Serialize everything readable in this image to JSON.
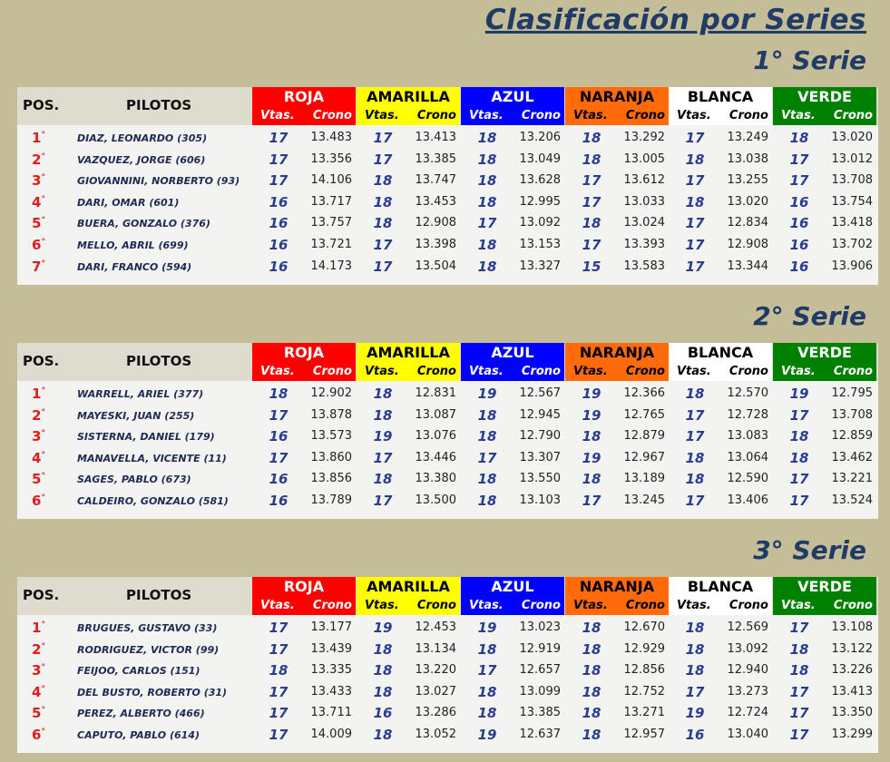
{
  "title": "Clasificación por Series",
  "colors": {
    "background": "#c5bd97",
    "title": "#1f3b66",
    "lanes": {
      "ROJA": {
        "bg": "#ff0000",
        "fg": "#ffffff"
      },
      "AMARILLA": {
        "bg": "#ffff00",
        "fg": "#000000"
      },
      "AZUL": {
        "bg": "#0000ff",
        "fg": "#ffffff"
      },
      "NARANJA": {
        "bg": "#ff6a0a",
        "fg": "#000000"
      },
      "BLANCA": {
        "bg": "#ffffff",
        "fg": "#000000"
      },
      "VERDE": {
        "bg": "#008000",
        "fg": "#ffffff"
      }
    }
  },
  "header": {
    "pos": "POS.",
    "pilotos": "PILOTOS",
    "lanes": [
      "ROJA",
      "AMARILLA",
      "AZUL",
      "NARANJA",
      "BLANCA",
      "VERDE"
    ],
    "vtas": "Vtas.",
    "crono": "Crono"
  },
  "series": [
    {
      "title": "1° Serie",
      "rows": [
        {
          "pos": "1",
          "name": "DIAZ, LEONARDO (305)",
          "r": [
            [
              "17",
              "13.483"
            ],
            [
              "17",
              "13.413"
            ],
            [
              "18",
              "13.206"
            ],
            [
              "18",
              "13.292"
            ],
            [
              "17",
              "13.249"
            ],
            [
              "18",
              "13.020"
            ]
          ]
        },
        {
          "pos": "2",
          "name": "VAZQUEZ, JORGE (606)",
          "r": [
            [
              "17",
              "13.356"
            ],
            [
              "17",
              "13.385"
            ],
            [
              "18",
              "13.049"
            ],
            [
              "18",
              "13.005"
            ],
            [
              "18",
              "13.038"
            ],
            [
              "17",
              "13.012"
            ]
          ]
        },
        {
          "pos": "3",
          "name": "GIOVANNINI, NORBERTO (93)",
          "r": [
            [
              "17",
              "14.106"
            ],
            [
              "18",
              "13.747"
            ],
            [
              "18",
              "13.628"
            ],
            [
              "17",
              "13.612"
            ],
            [
              "17",
              "13.255"
            ],
            [
              "17",
              "13.708"
            ]
          ]
        },
        {
          "pos": "4",
          "name": "DARI, OMAR (601)",
          "r": [
            [
              "16",
              "13.717"
            ],
            [
              "18",
              "13.453"
            ],
            [
              "18",
              "12.995"
            ],
            [
              "17",
              "13.033"
            ],
            [
              "18",
              "13.020"
            ],
            [
              "16",
              "13.754"
            ]
          ]
        },
        {
          "pos": "5",
          "name": "BUERA, GONZALO (376)",
          "r": [
            [
              "16",
              "13.757"
            ],
            [
              "18",
              "12.908"
            ],
            [
              "17",
              "13.092"
            ],
            [
              "18",
              "13.024"
            ],
            [
              "17",
              "12.834"
            ],
            [
              "16",
              "13.418"
            ]
          ]
        },
        {
          "pos": "6",
          "name": "MELLO, ABRIL (699)",
          "r": [
            [
              "16",
              "13.721"
            ],
            [
              "17",
              "13.398"
            ],
            [
              "18",
              "13.153"
            ],
            [
              "17",
              "13.393"
            ],
            [
              "17",
              "12.908"
            ],
            [
              "16",
              "13.702"
            ]
          ]
        },
        {
          "pos": "7",
          "name": "DARI, FRANCO (594)",
          "r": [
            [
              "16",
              "14.173"
            ],
            [
              "17",
              "13.504"
            ],
            [
              "18",
              "13.327"
            ],
            [
              "15",
              "13.583"
            ],
            [
              "17",
              "13.344"
            ],
            [
              "16",
              "13.906"
            ]
          ]
        }
      ]
    },
    {
      "title": "2° Serie",
      "rows": [
        {
          "pos": "1",
          "name": "WARRELL, ARIEL (377)",
          "r": [
            [
              "18",
              "12.902"
            ],
            [
              "18",
              "12.831"
            ],
            [
              "19",
              "12.567"
            ],
            [
              "19",
              "12.366"
            ],
            [
              "18",
              "12.570"
            ],
            [
              "19",
              "12.795"
            ]
          ]
        },
        {
          "pos": "2",
          "name": "MAYESKI, JUAN (255)",
          "r": [
            [
              "17",
              "13.878"
            ],
            [
              "18",
              "13.087"
            ],
            [
              "18",
              "12.945"
            ],
            [
              "19",
              "12.765"
            ],
            [
              "17",
              "12.728"
            ],
            [
              "17",
              "13.708"
            ]
          ]
        },
        {
          "pos": "3",
          "name": "SISTERNA, DANIEL (179)",
          "r": [
            [
              "16",
              "13.573"
            ],
            [
              "19",
              "13.076"
            ],
            [
              "18",
              "12.790"
            ],
            [
              "18",
              "12.879"
            ],
            [
              "17",
              "13.083"
            ],
            [
              "18",
              "12.859"
            ]
          ]
        },
        {
          "pos": "4",
          "name": "MANAVELLA, VICENTE (11)",
          "r": [
            [
              "17",
              "13.860"
            ],
            [
              "17",
              "13.446"
            ],
            [
              "17",
              "13.307"
            ],
            [
              "19",
              "12.967"
            ],
            [
              "18",
              "13.064"
            ],
            [
              "18",
              "13.462"
            ]
          ]
        },
        {
          "pos": "5",
          "name": "SAGES, PABLO (673)",
          "r": [
            [
              "16",
              "13.856"
            ],
            [
              "18",
              "13.380"
            ],
            [
              "18",
              "13.550"
            ],
            [
              "18",
              "13.189"
            ],
            [
              "18",
              "12.590"
            ],
            [
              "17",
              "13.221"
            ]
          ]
        },
        {
          "pos": "6",
          "name": "CALDEIRO, GONZALO  (581)",
          "r": [
            [
              "16",
              "13.789"
            ],
            [
              "17",
              "13.500"
            ],
            [
              "18",
              "13.103"
            ],
            [
              "17",
              "13.245"
            ],
            [
              "17",
              "13.406"
            ],
            [
              "17",
              "13.524"
            ]
          ]
        }
      ]
    },
    {
      "title": "3° Serie",
      "rows": [
        {
          "pos": "1",
          "name": "BRUGUES, GUSTAVO (33)",
          "r": [
            [
              "17",
              "13.177"
            ],
            [
              "19",
              "12.453"
            ],
            [
              "19",
              "13.023"
            ],
            [
              "18",
              "12.670"
            ],
            [
              "18",
              "12.569"
            ],
            [
              "17",
              "13.108"
            ]
          ]
        },
        {
          "pos": "2",
          "name": "RODRIGUEZ, VICTOR (99)",
          "r": [
            [
              "17",
              "13.439"
            ],
            [
              "18",
              "13.134"
            ],
            [
              "18",
              "12.919"
            ],
            [
              "18",
              "12.929"
            ],
            [
              "18",
              "13.092"
            ],
            [
              "18",
              "13.122"
            ]
          ]
        },
        {
          "pos": "3",
          "name": "FEIJOO, CARLOS (151)",
          "r": [
            [
              "18",
              "13.335"
            ],
            [
              "18",
              "13.220"
            ],
            [
              "17",
              "12.657"
            ],
            [
              "18",
              "12.856"
            ],
            [
              "18",
              "12.940"
            ],
            [
              "18",
              "13.226"
            ]
          ]
        },
        {
          "pos": "4",
          "name": "DEL BUSTO, ROBERTO (31)",
          "r": [
            [
              "17",
              "13.433"
            ],
            [
              "18",
              "13.027"
            ],
            [
              "18",
              "13.099"
            ],
            [
              "18",
              "12.752"
            ],
            [
              "17",
              "13.273"
            ],
            [
              "17",
              "13.413"
            ]
          ]
        },
        {
          "pos": "5",
          "name": "PEREZ, ALBERTO (466)",
          "r": [
            [
              "17",
              "13.711"
            ],
            [
              "16",
              "13.286"
            ],
            [
              "18",
              "13.385"
            ],
            [
              "18",
              "13.271"
            ],
            [
              "19",
              "12.724"
            ],
            [
              "17",
              "13.350"
            ]
          ]
        },
        {
          "pos": "6",
          "name": "CAPUTO, PABLO  (614)",
          "r": [
            [
              "17",
              "14.009"
            ],
            [
              "18",
              "13.052"
            ],
            [
              "19",
              "12.637"
            ],
            [
              "18",
              "12.957"
            ],
            [
              "16",
              "13.040"
            ],
            [
              "17",
              "13.299"
            ]
          ]
        }
      ]
    }
  ]
}
